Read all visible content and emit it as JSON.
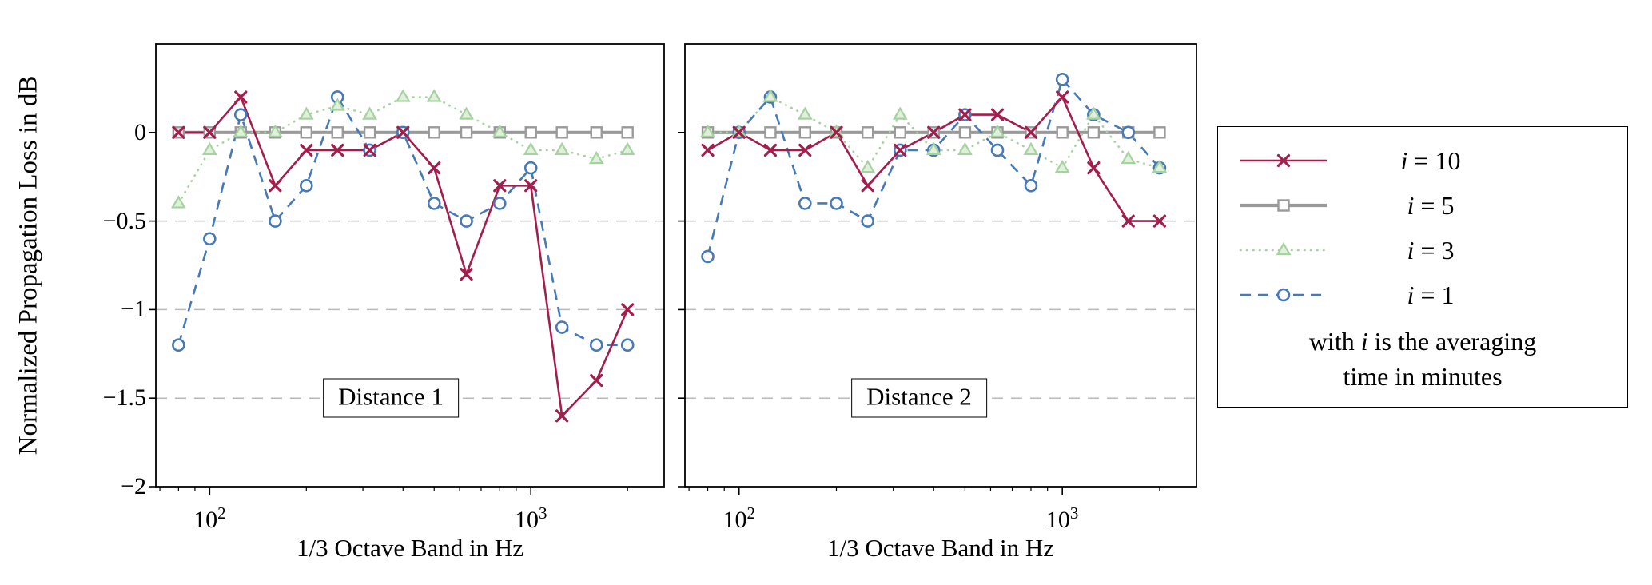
{
  "chart_data": {
    "type": "line",
    "x_scale": "log",
    "xlabel": "1/3 Octave Band in Hz",
    "ylabel": "Normalized Propagation Loss in dB",
    "x_hz": [
      80,
      100,
      125,
      160,
      200,
      250,
      315,
      400,
      500,
      630,
      800,
      1000,
      1250,
      1600,
      2000
    ],
    "xlim_hz": [
      68,
      2600
    ],
    "ylim_db": [
      -2,
      0.5
    ],
    "x_tick_values": [
      100,
      1000
    ],
    "x_tick_labels": [
      {
        "base": "10",
        "exp": "2"
      },
      {
        "base": "10",
        "exp": "3"
      }
    ],
    "y_tick_values": [
      0,
      -0.5,
      -1,
      -1.5,
      -2
    ],
    "y_tick_labels": [
      "0",
      "−0.5",
      "−1",
      "−1.5",
      "−2"
    ],
    "grid_y_values": [
      -0.5,
      -1,
      -1.5
    ],
    "grid_style": "dashed",
    "legend_position": "outside right",
    "series_styles": {
      "i10": {
        "color": "#a31e4d",
        "line": "solid",
        "marker": "x-marker"
      },
      "i5": {
        "color": "#9a9a9a",
        "line": "solid-thick",
        "marker": "square-marker"
      },
      "i3": {
        "color": "#a5d3a0",
        "line": "dotted",
        "marker": "triangle-marker"
      },
      "i1": {
        "color": "#4779b6",
        "line": "dashed",
        "marker": "circle-marker"
      }
    },
    "legend": {
      "entries": [
        {
          "series": "i10",
          "var": "i",
          "eq": " = 10"
        },
        {
          "series": "i5",
          "var": "i",
          "eq": " = 5"
        },
        {
          "series": "i3",
          "var": "i",
          "eq": " = 3"
        },
        {
          "series": "i1",
          "var": "i",
          "eq": " = 1"
        }
      ],
      "note1_pre": "with ",
      "note1_var": "i",
      "note1_post": " is the averaging",
      "note2": "time in minutes"
    },
    "plots": [
      {
        "annotation": "Distance 1",
        "series": [
          {
            "id": "i10",
            "label": "i = 10",
            "values": [
              0,
              0,
              0.2,
              -0.3,
              -0.1,
              -0.1,
              -0.1,
              0,
              -0.2,
              -0.8,
              -0.3,
              -0.3,
              -1.6,
              -1.4,
              -1.0
            ]
          },
          {
            "id": "i5",
            "label": "i = 5",
            "values": [
              0,
              0,
              0,
              0,
              0,
              0,
              0,
              0,
              0,
              0,
              0,
              0,
              0,
              0,
              0
            ]
          },
          {
            "id": "i3",
            "label": "i = 3",
            "values": [
              -0.4,
              -0.1,
              0,
              0,
              0.1,
              0.15,
              0.1,
              0.2,
              0.2,
              0.1,
              0,
              -0.1,
              -0.1,
              -0.15,
              -0.1
            ]
          },
          {
            "id": "i1",
            "label": "i = 1",
            "values": [
              -1.2,
              -0.6,
              0.1,
              -0.5,
              -0.3,
              0.2,
              -0.1,
              0,
              -0.4,
              -0.5,
              -0.4,
              -0.2,
              -1.1,
              -1.2,
              -1.2
            ]
          }
        ]
      },
      {
        "annotation": "Distance 2",
        "series": [
          {
            "id": "i10",
            "label": "i = 10",
            "values": [
              -0.1,
              0,
              -0.1,
              -0.1,
              0,
              -0.3,
              -0.1,
              0,
              0.1,
              0.1,
              0,
              0.2,
              -0.2,
              -0.5,
              -0.5
            ]
          },
          {
            "id": "i5",
            "label": "i = 5",
            "values": [
              0,
              0,
              0,
              0,
              0,
              0,
              0,
              0,
              0,
              0,
              0,
              0,
              0,
              0,
              0
            ]
          },
          {
            "id": "i3",
            "label": "i = 3",
            "values": [
              0,
              0,
              0.2,
              0.1,
              0,
              -0.2,
              0.1,
              -0.1,
              -0.1,
              0,
              -0.1,
              -0.2,
              0.1,
              -0.15,
              -0.2
            ]
          },
          {
            "id": "i1",
            "label": "i = 1",
            "values": [
              -0.7,
              0,
              0.2,
              -0.4,
              -0.4,
              -0.5,
              -0.1,
              -0.1,
              0.1,
              -0.1,
              -0.3,
              0.3,
              0.1,
              0,
              -0.2
            ]
          }
        ]
      }
    ]
  }
}
